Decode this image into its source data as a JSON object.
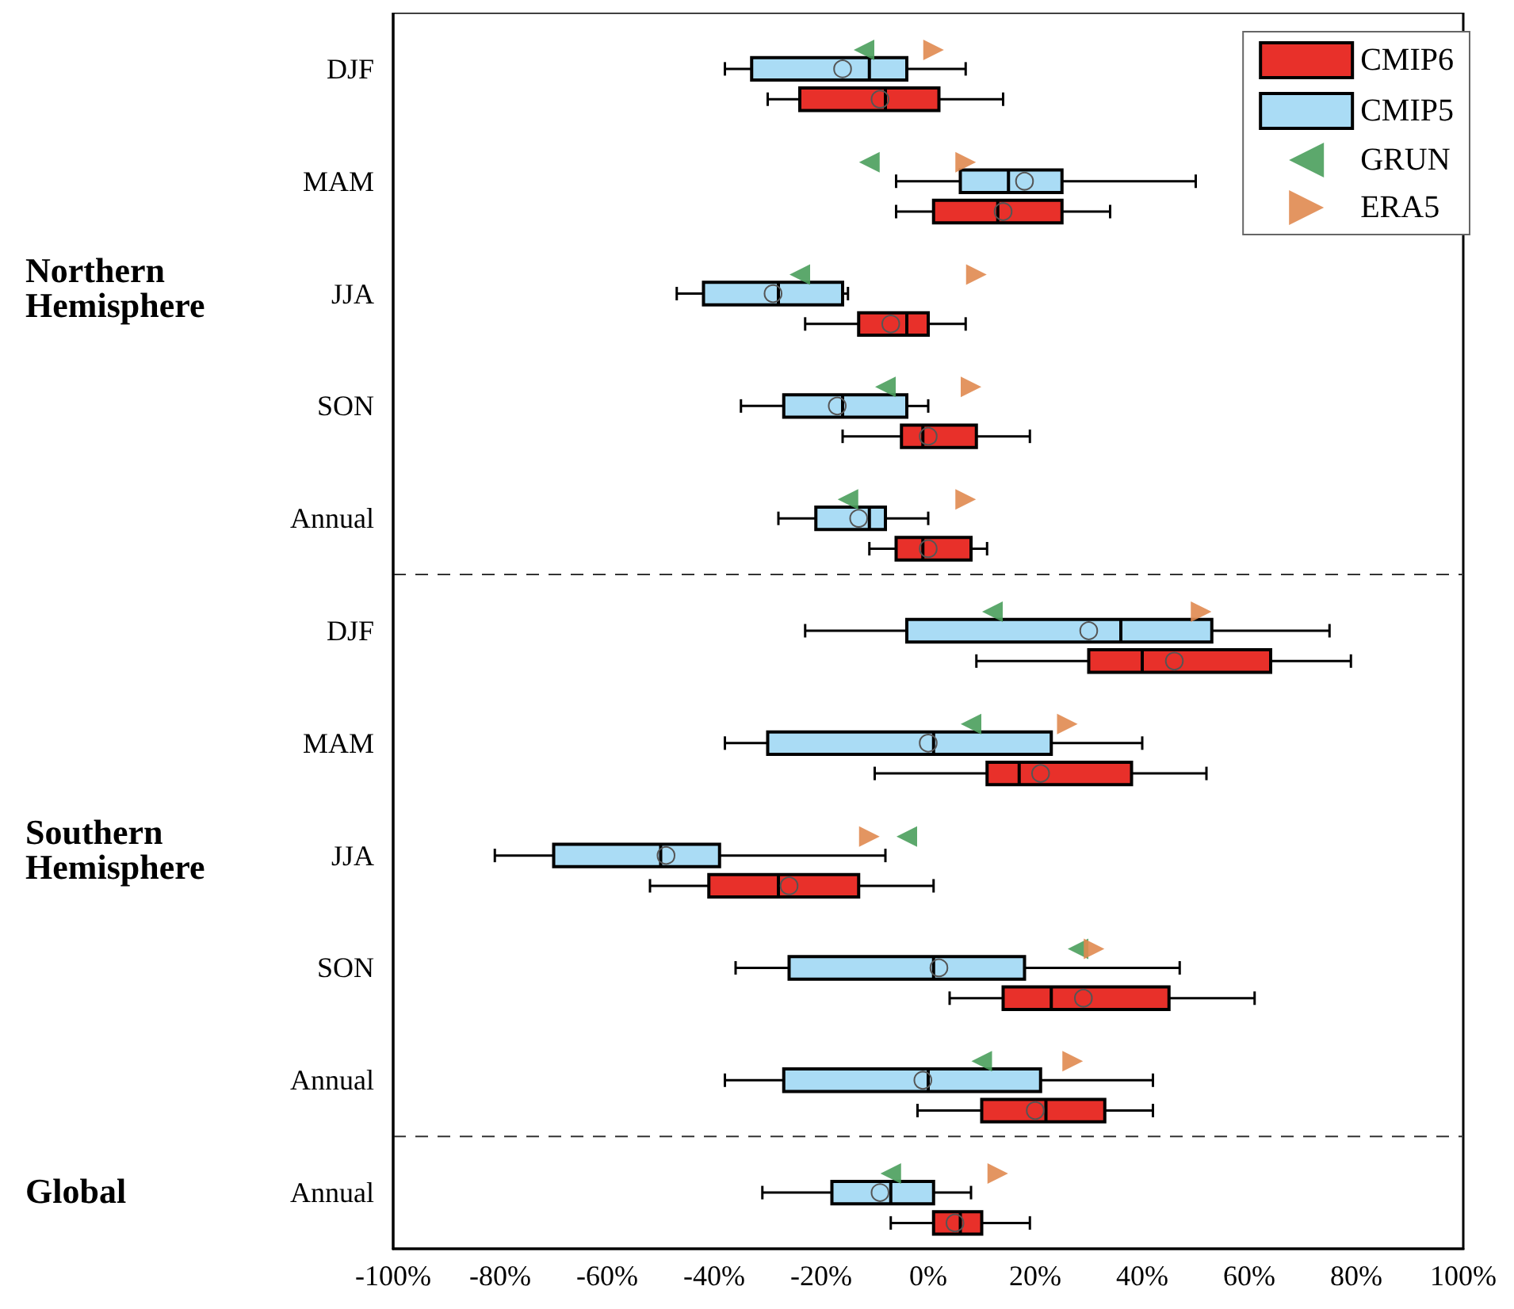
{
  "chart_data": {
    "type": "box",
    "orientation": "horizontal",
    "categories": [
      "DJF",
      "MAM",
      "JJA",
      "SON",
      "Annual",
      "DJF",
      "MAM",
      "JJA",
      "SON",
      "Annual",
      "Annual"
    ],
    "xlim": [
      -100,
      100
    ],
    "xticks": [
      {
        "value": -100,
        "label": "-100%"
      },
      {
        "value": -80,
        "label": "-80%"
      },
      {
        "value": -60,
        "label": "-60%"
      },
      {
        "value": -40,
        "label": "-40%"
      },
      {
        "value": -20,
        "label": "-20%"
      },
      {
        "value": 0,
        "label": "0%"
      },
      {
        "value": 20,
        "label": "20%"
      },
      {
        "value": 40,
        "label": "40%"
      },
      {
        "value": 60,
        "label": "60%"
      },
      {
        "value": 80,
        "label": "80%"
      },
      {
        "value": 100,
        "label": "100%"
      }
    ],
    "grid": false,
    "legend": "top right",
    "marker": "triangle",
    "annotations": [
      "Northern Hemisphere",
      "Southern Hemisphere",
      "Global"
    ],
    "series": [
      {
        "name": "CMIP6",
        "type": "box",
        "color": "#e8302a",
        "boxes": [
          {
            "low": -30,
            "q1": -24,
            "median": -8,
            "q3": 2,
            "high": 14,
            "mean": -9
          },
          {
            "low": -6,
            "q1": 1,
            "median": 13,
            "q3": 25,
            "high": 34,
            "mean": 14
          },
          {
            "low": -23,
            "q1": -13,
            "median": -4,
            "q3": 0,
            "high": 7,
            "mean": -7
          },
          {
            "low": -16,
            "q1": -5,
            "median": -1,
            "q3": 9,
            "high": 19,
            "mean": 0
          },
          {
            "low": -11,
            "q1": -6,
            "median": -1,
            "q3": 8,
            "high": 11,
            "mean": 0
          },
          {
            "low": 9,
            "q1": 30,
            "median": 40,
            "q3": 64,
            "high": 79,
            "mean": 46
          },
          {
            "low": -10,
            "q1": 11,
            "median": 17,
            "q3": 38,
            "high": 52,
            "mean": 21
          },
          {
            "low": -52,
            "q1": -41,
            "median": -28,
            "q3": -13,
            "high": 1,
            "mean": -26
          },
          {
            "low": 4,
            "q1": 14,
            "median": 23,
            "q3": 45,
            "high": 61,
            "mean": 29
          },
          {
            "low": -2,
            "q1": 10,
            "median": 22,
            "q3": 33,
            "high": 42,
            "mean": 20
          },
          {
            "low": -7,
            "q1": 1,
            "median": 6,
            "q3": 10,
            "high": 19,
            "mean": 5
          }
        ]
      },
      {
        "name": "CMIP5",
        "type": "box",
        "color": "#aadcf5",
        "boxes": [
          {
            "low": -38,
            "q1": -33,
            "median": -11,
            "q3": -4,
            "high": 7,
            "mean": -16
          },
          {
            "low": -6,
            "q1": 6,
            "median": 15,
            "q3": 25,
            "high": 50,
            "mean": 18
          },
          {
            "low": -47,
            "q1": -42,
            "median": -28,
            "q3": -16,
            "high": -15,
            "mean": -29
          },
          {
            "low": -35,
            "q1": -27,
            "median": -16,
            "q3": -4,
            "high": 0,
            "mean": -17
          },
          {
            "low": -28,
            "q1": -21,
            "median": -11,
            "q3": -8,
            "high": 0,
            "mean": -13
          },
          {
            "low": -23,
            "q1": -4,
            "median": 36,
            "q3": 53,
            "high": 75,
            "mean": 30
          },
          {
            "low": -38,
            "q1": -30,
            "median": 1,
            "q3": 23,
            "high": 40,
            "mean": 0
          },
          {
            "low": -81,
            "q1": -70,
            "median": -50,
            "q3": -39,
            "high": -8,
            "mean": -49
          },
          {
            "low": -36,
            "q1": -26,
            "median": 1,
            "q3": 18,
            "high": 47,
            "mean": 2
          },
          {
            "low": -38,
            "q1": -27,
            "median": 0,
            "q3": 21,
            "high": 42,
            "mean": -1
          },
          {
            "low": -31,
            "q1": -18,
            "median": -7,
            "q3": 1,
            "high": 8,
            "mean": -9
          }
        ]
      },
      {
        "name": "GRUN",
        "type": "scatter",
        "color": "#4a9e5c",
        "values": [
          -12,
          -11,
          -24,
          -8,
          -15,
          12,
          8,
          -4,
          28,
          10,
          -7
        ]
      },
      {
        "name": "ERA5",
        "type": "scatter",
        "color": "#e08a50",
        "values": [
          1,
          7,
          9,
          8,
          7,
          51,
          26,
          -11,
          31,
          27,
          13
        ]
      }
    ]
  }
}
